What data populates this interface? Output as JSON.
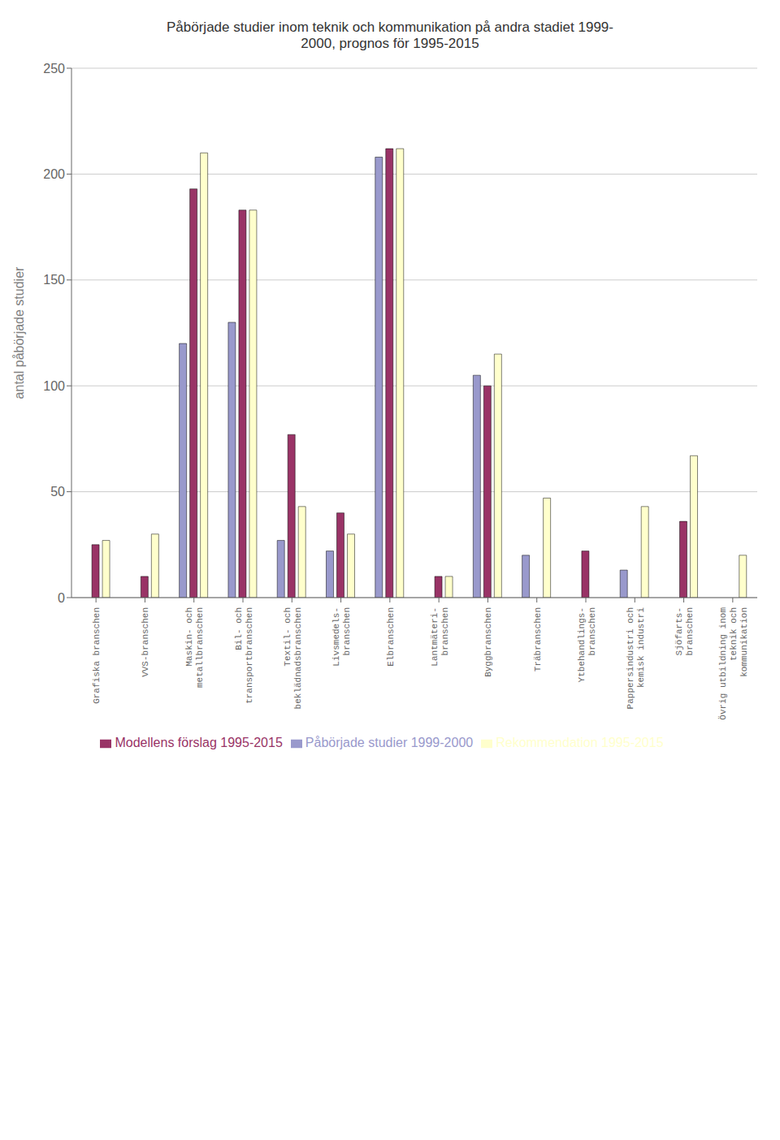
{
  "chart_data": {
    "type": "bar",
    "title": "Påbörjade studier inom teknik och kommunikation på andra stadiet 1999-\n2000, prognos för 1995-2015",
    "ylabel": "antal påbörjade studier",
    "categories": [
      "Grafiska branschen",
      "VVS-branschen",
      "Maskin- och\nmetallbranschen",
      "Bil- och\ntransportbranschen",
      "Textil- och\nbeklädnadsbranschen",
      "Livsmedels-\nbranschen",
      "Elbranschen",
      "Lantmäteri-\nbranschen",
      "Byggbranschen",
      "Träbranschen",
      "Ytbehandlings-\nbranschen",
      "Pappersindustri och\nkemisk industri",
      "Sjöfarts-\nbranschen",
      "Övrig utbildning inom\nteknik och\nkommunikation"
    ],
    "series": [
      {
        "name": "Påbörjade studier 1999-2000",
        "color": "#9999cc",
        "values": [
          0,
          0,
          120,
          130,
          27,
          22,
          208,
          0,
          105,
          20,
          0,
          13,
          0,
          0
        ]
      },
      {
        "name": "Modellens förslag 1995-2015",
        "color": "#993366",
        "values": [
          25,
          10,
          193,
          183,
          77,
          40,
          212,
          10,
          100,
          0,
          22,
          0,
          36,
          0
        ]
      },
      {
        "name": "Rekommendation 1995-2015",
        "color": "#ffffcc",
        "values": [
          27,
          30,
          210,
          183,
          43,
          30,
          212,
          10,
          115,
          47,
          0,
          43,
          67,
          20
        ]
      }
    ],
    "ylim": [
      0,
      250
    ],
    "yticks": [
      0,
      50,
      100,
      150,
      200,
      250
    ],
    "grid": true,
    "legend": "bottom"
  }
}
